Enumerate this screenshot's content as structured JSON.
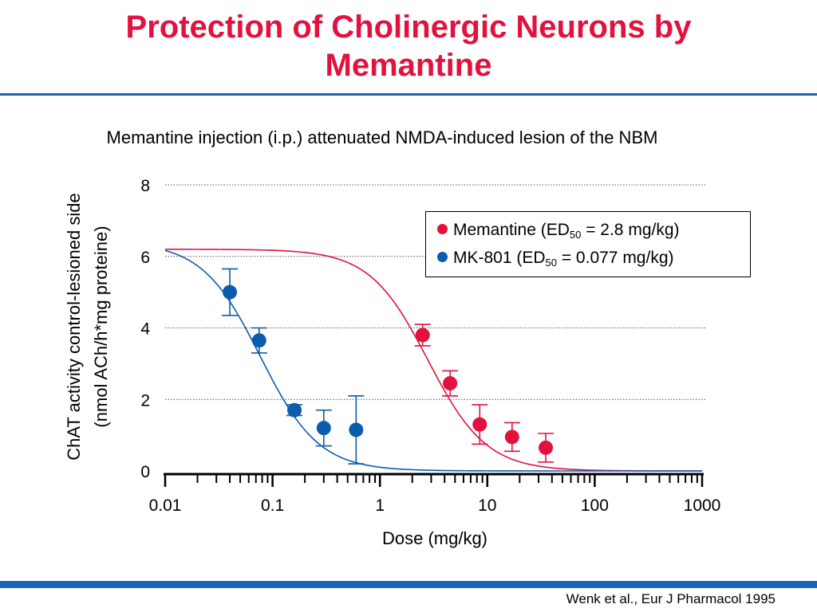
{
  "slide": {
    "title_line1": "Protection of Cholinergic Neurons by",
    "title_line2": "Memantine",
    "subtitle": "Memantine injection (i.p.) attenuated NMDA-induced lesion of the NBM",
    "source": "Wenk et al., Eur J Pharmacol 1995",
    "accent_color": "#e2113e",
    "band_color": "#1c63b7"
  },
  "chart_data": {
    "type": "scatter",
    "title": "",
    "xlabel": "Dose (mg/kg)",
    "ylabel_line1": "ChAT activity control-lesioned side",
    "ylabel_line2": "(nmol ACh/h*mg proteine)",
    "x_scale": "log",
    "xlim": [
      0.01,
      1000
    ],
    "ylim": [
      0,
      8
    ],
    "x_ticks": [
      {
        "value": 0.01,
        "label": "0.01"
      },
      {
        "value": 0.1,
        "label": "0.1"
      },
      {
        "value": 1,
        "label": "1"
      },
      {
        "value": 10,
        "label": "10"
      },
      {
        "value": 100,
        "label": "100"
      },
      {
        "value": 1000,
        "label": "1000"
      }
    ],
    "y_ticks": [
      {
        "value": 0,
        "label": "0"
      },
      {
        "value": 2,
        "label": "2"
      },
      {
        "value": 4,
        "label": "4"
      },
      {
        "value": 6,
        "label": "6"
      },
      {
        "value": 8,
        "label": "8"
      }
    ],
    "grid_y": true,
    "legend_position": "top-right",
    "series": [
      {
        "name": "Memantine",
        "legend_prefix": "Memantine (ED",
        "legend_sub": "50",
        "legend_suffix": " = 2.8 mg/kg)",
        "color": "#e2113e",
        "points": [
          {
            "x": 2.5,
            "y": 3.8,
            "err": 0.3
          },
          {
            "x": 4.5,
            "y": 2.45,
            "err": 0.35
          },
          {
            "x": 8.5,
            "y": 1.3,
            "err": 0.55
          },
          {
            "x": 17,
            "y": 0.95,
            "err": 0.4
          },
          {
            "x": 35,
            "y": 0.65,
            "err": 0.4
          }
        ],
        "fit": {
          "top": 6.2,
          "bottom": 0,
          "ed50": 2.8,
          "hill": 1.6
        }
      },
      {
        "name": "MK-801",
        "legend_prefix": "MK-801 (ED",
        "legend_sub": "50",
        "legend_suffix": " = 0.077 mg/kg)",
        "color": "#0c5cac",
        "points": [
          {
            "x": 0.04,
            "y": 5.0,
            "err": 0.65
          },
          {
            "x": 0.075,
            "y": 3.65,
            "err": 0.35
          },
          {
            "x": 0.16,
            "y": 1.7,
            "err": 0.15
          },
          {
            "x": 0.3,
            "y": 1.2,
            "err": 0.5
          },
          {
            "x": 0.6,
            "y": 1.15,
            "err": 0.95
          }
        ],
        "fit": {
          "top": 6.4,
          "bottom": 0,
          "ed50": 0.077,
          "hill": 1.6
        }
      }
    ]
  }
}
